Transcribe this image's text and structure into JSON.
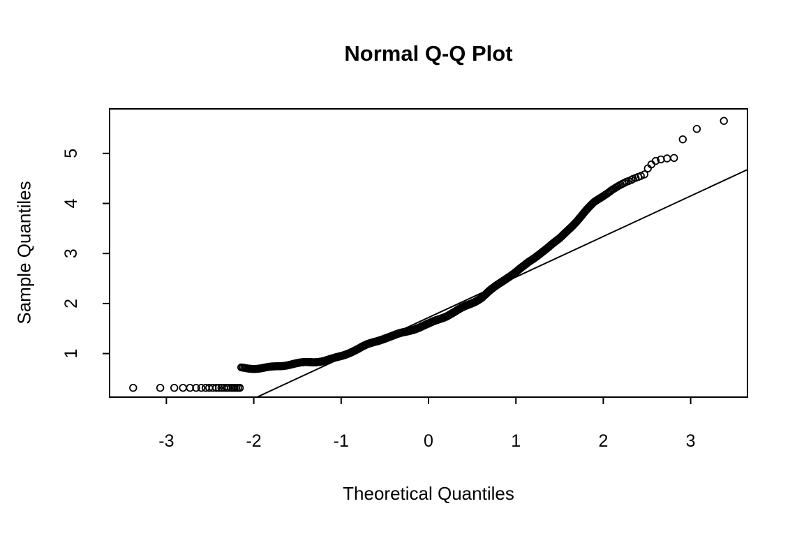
{
  "chart_data": {
    "type": "scatter",
    "subtype": "normal-qq-plot",
    "title": "Normal Q-Q Plot",
    "xlabel": "Theoretical Quantiles",
    "ylabel": "Sample Quantiles",
    "x_ticks": [
      -3,
      -2,
      -1,
      0,
      1,
      2,
      3
    ],
    "y_ticks": [
      1,
      2,
      3,
      4,
      5
    ],
    "xlim": [
      -3.65,
      3.65
    ],
    "ylim": [
      0.13,
      5.89
    ],
    "grid": false,
    "legend": null,
    "marker": "open-circle",
    "point_color": "#000000",
    "line_color": "#000000",
    "background": "#ffffff",
    "n_points": 1400,
    "reference_line": {
      "intercept": 1.72,
      "slope": 0.81
    },
    "low_tail_sample_value": 0.315,
    "low_tail_points": [
      [
        -3.38,
        0.315
      ],
      [
        -3.07,
        0.315
      ],
      [
        -2.91,
        0.315
      ],
      [
        -2.81,
        0.315
      ],
      [
        -2.73,
        0.315
      ],
      [
        -2.66,
        0.315
      ],
      [
        -2.6,
        0.315
      ],
      [
        -2.55,
        0.315
      ],
      [
        -2.51,
        0.315
      ],
      [
        -2.47,
        0.315
      ],
      [
        -2.43,
        0.315
      ],
      [
        -2.4,
        0.315
      ],
      [
        -2.37,
        0.315
      ],
      [
        -2.34,
        0.315
      ],
      [
        -2.31,
        0.315
      ],
      [
        -2.29,
        0.315
      ],
      [
        -2.26,
        0.315
      ],
      [
        -2.24,
        0.315
      ],
      [
        -2.22,
        0.315
      ],
      [
        -2.2,
        0.315
      ],
      [
        -2.18,
        0.315
      ],
      [
        -2.16,
        0.315
      ]
    ],
    "high_tail_points": [
      [
        2.24,
        4.41
      ],
      [
        2.26,
        4.43
      ],
      [
        2.29,
        4.45
      ],
      [
        2.32,
        4.47
      ],
      [
        2.34,
        4.49
      ],
      [
        2.37,
        4.51
      ],
      [
        2.4,
        4.53
      ],
      [
        2.43,
        4.55
      ],
      [
        2.47,
        4.58
      ],
      [
        2.51,
        4.7
      ],
      [
        2.55,
        4.78
      ],
      [
        2.6,
        4.85
      ],
      [
        2.66,
        4.88
      ],
      [
        2.73,
        4.9
      ],
      [
        2.81,
        4.91
      ],
      [
        2.91,
        5.28
      ],
      [
        3.07,
        5.49
      ],
      [
        3.38,
        5.65
      ]
    ],
    "band_rank_range": [
      23,
      1382
    ],
    "quantile_curve_knots": [
      [
        -2.25,
        0.715
      ],
      [
        -2.0,
        0.72
      ],
      [
        -1.9,
        0.725
      ],
      [
        -1.8,
        0.74
      ],
      [
        -1.7,
        0.75
      ],
      [
        -1.6,
        0.765
      ],
      [
        -1.5,
        0.785
      ],
      [
        -1.4,
        0.81
      ],
      [
        -1.3,
        0.835
      ],
      [
        -1.2,
        0.865
      ],
      [
        -1.1,
        0.91
      ],
      [
        -1.0,
        0.965
      ],
      [
        -0.9,
        1.03
      ],
      [
        -0.8,
        1.09
      ],
      [
        -0.7,
        1.16
      ],
      [
        -0.6,
        1.23
      ],
      [
        -0.5,
        1.3
      ],
      [
        -0.4,
        1.36
      ],
      [
        -0.3,
        1.43
      ],
      [
        -0.2,
        1.49
      ],
      [
        -0.1,
        1.54
      ],
      [
        0.0,
        1.59
      ],
      [
        0.1,
        1.66
      ],
      [
        0.2,
        1.73
      ],
      [
        0.3,
        1.82
      ],
      [
        0.4,
        1.92
      ],
      [
        0.5,
        2.02
      ],
      [
        0.6,
        2.13
      ],
      [
        0.7,
        2.27
      ],
      [
        0.8,
        2.39
      ],
      [
        0.9,
        2.51
      ],
      [
        1.0,
        2.62
      ],
      [
        1.1,
        2.74
      ],
      [
        1.2,
        2.88
      ],
      [
        1.3,
        3.04
      ],
      [
        1.4,
        3.18
      ],
      [
        1.5,
        3.31
      ],
      [
        1.6,
        3.49
      ],
      [
        1.7,
        3.66
      ],
      [
        1.8,
        3.84
      ],
      [
        1.9,
        4.01
      ],
      [
        2.0,
        4.14
      ],
      [
        2.1,
        4.27
      ],
      [
        2.25,
        4.42
      ]
    ]
  }
}
